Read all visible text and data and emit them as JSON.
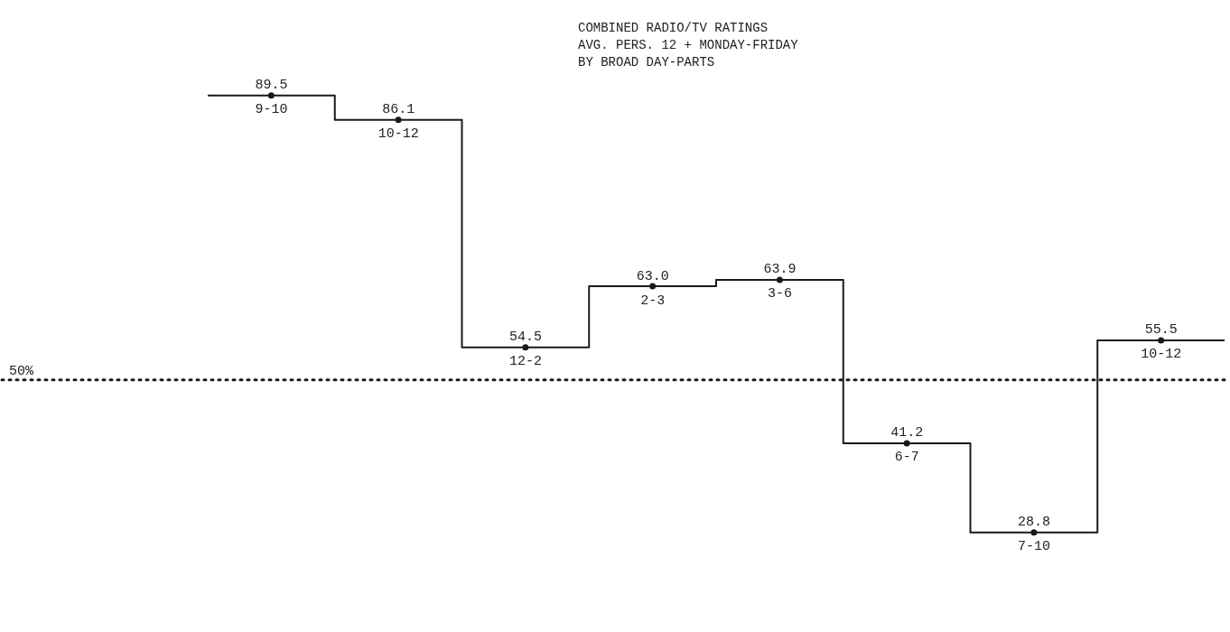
{
  "chart_data": {
    "type": "step",
    "title": "COMBINED RADIO/TV RATINGS",
    "subtitle": "AVG. PERS. 12 + MONDAY-FRIDAY\nBY BROAD DAY-PARTS",
    "categories": [
      "9-10",
      "10-12",
      "12-2",
      "2-3",
      "3-6",
      "6-7",
      "7-10",
      "10-12"
    ],
    "values": [
      89.5,
      86.1,
      54.5,
      63.0,
      63.9,
      41.2,
      28.8,
      55.5
    ],
    "value_labels": [
      "89.5",
      "86.1",
      "54.5",
      "63.0",
      "63.9",
      "41.2",
      "28.8",
      "55.5"
    ],
    "color": "#1a1a1a",
    "marker": "circle",
    "ref_lines": [
      {
        "axis": "y",
        "value": 50,
        "label": "50%",
        "line_style": "dotted",
        "color": "#1a1a1a"
      }
    ]
  }
}
